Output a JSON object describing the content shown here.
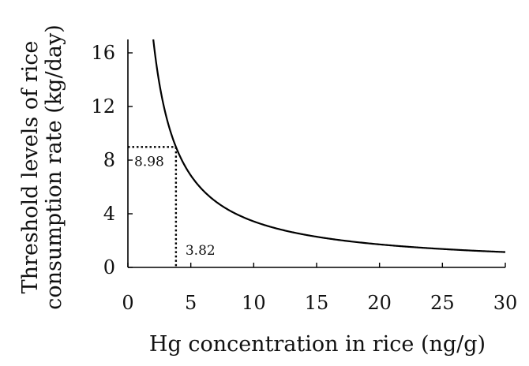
{
  "chart_data": {
    "type": "line",
    "title": "",
    "xlabel": "Hg concentration in rice (ng/g)",
    "ylabel_lines": [
      "Threshold levels of rice",
      "consumption rate (kg/day)"
    ],
    "xlim": [
      0,
      30
    ],
    "ylim": [
      0,
      17
    ],
    "xticks": [
      0,
      5,
      10,
      15,
      20,
      25,
      30
    ],
    "yticks": [
      0,
      4,
      8,
      12,
      16
    ],
    "grid": false,
    "legend": "none",
    "series": [
      {
        "formula": "y = k / x",
        "k": 34.3,
        "x": [
          2.02,
          2.5,
          3,
          3.82,
          4.5,
          5,
          6,
          7,
          8,
          10,
          12,
          15,
          20,
          25,
          30
        ],
        "values": [
          16.98,
          13.72,
          11.43,
          8.98,
          7.62,
          6.86,
          5.72,
          4.9,
          4.29,
          3.43,
          2.86,
          2.29,
          1.72,
          1.37,
          1.14
        ],
        "color": "#000000"
      }
    ],
    "annotations": [
      {
        "text": "8.98",
        "x": 3.82,
        "y": 8.98,
        "kind": "horizontal-dotted"
      },
      {
        "text": "3.82",
        "x": 3.82,
        "y": 8.98,
        "kind": "vertical-dotted"
      }
    ]
  }
}
